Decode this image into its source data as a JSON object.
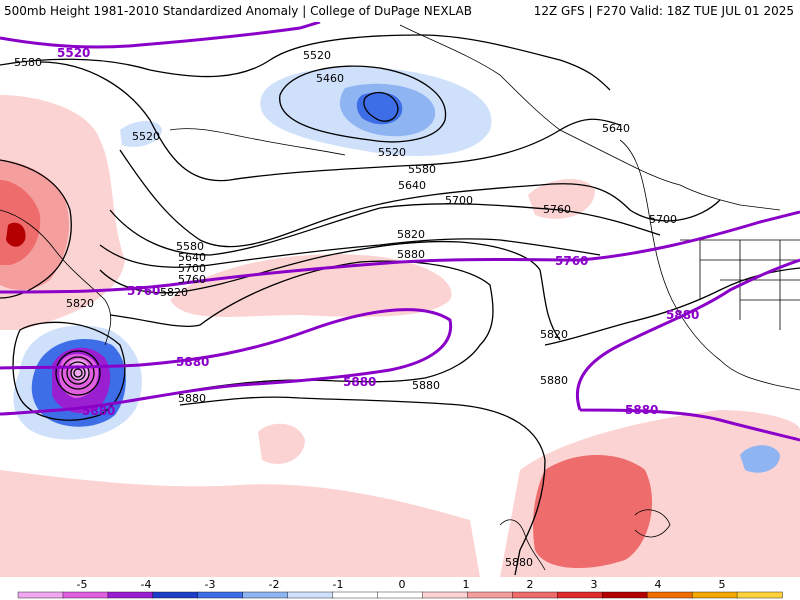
{
  "header": {
    "title": "500mb Height 1981-2010 Standardized Anomaly | College of DuPage NEXLAB",
    "run": "12Z GFS | F270 Valid: 18Z TUE JUL 01 2025"
  },
  "contour_labels": [
    "5520",
    "5580",
    "5460",
    "5640",
    "5700",
    "5760",
    "5820",
    "5880"
  ],
  "climatology_labels": [
    "5520",
    "5760",
    "5880"
  ],
  "colorbar": {
    "ticks": [
      "-5",
      "-4",
      "-3",
      "-2",
      "-1",
      "0",
      "1",
      "2",
      "3",
      "4",
      "5"
    ],
    "colors": [
      "#f0a8f0",
      "#e060e0",
      "#9a1fd0",
      "#1e3ec8",
      "#3d6ee8",
      "#8fb4f2",
      "#cfe0fb",
      "#ffffff",
      "#ffffff",
      "#fcd3d3",
      "#f59e9e",
      "#ef6c6c",
      "#e02a2a",
      "#b40000",
      "#f26c00",
      "#f4a800",
      "#ffd23c"
    ]
  },
  "colors": {
    "contour": "#000000",
    "climatology": "#8a00c8",
    "coast": "#000000"
  }
}
